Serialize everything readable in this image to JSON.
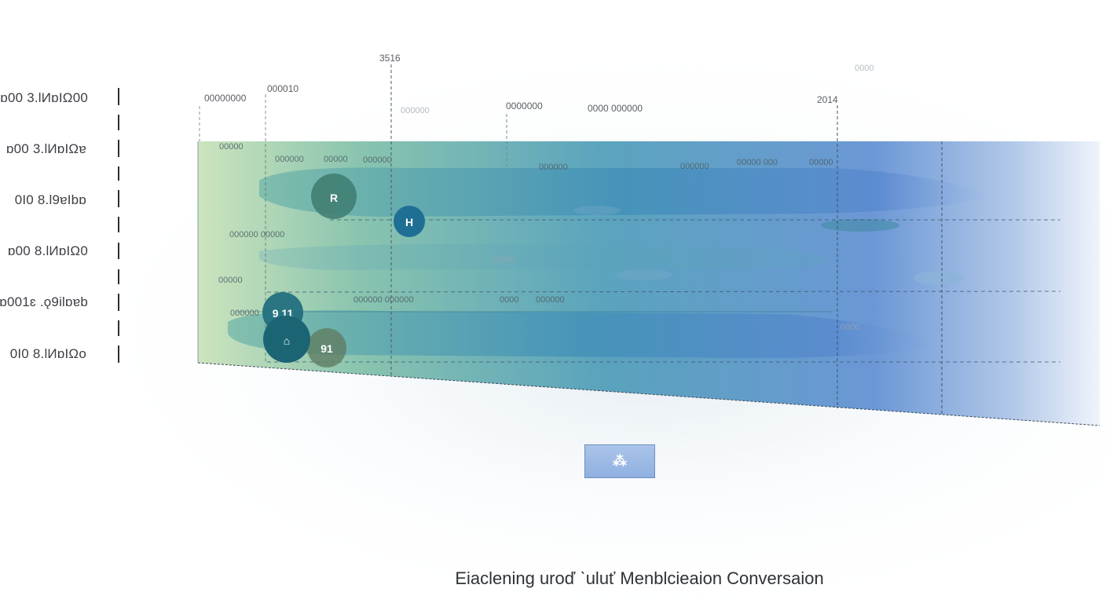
{
  "caption": "Eiaclening uroď ˋuluť Menblcieaion Conversaion",
  "row_labels": [
    "ɒ00 3.ƖИɒIΩ00",
    "ɒ00 3.ƖИɒIΩɐ",
    "0I0 8.Ɩ9ɐIbɒ",
    "ɒ00 8.ƖИɒIΩ0",
    "ɒ001ɛ .ǫ9ilɒɐb",
    "0I0 8.ƖИɒIΩo"
  ],
  "top_labels": [
    "3516",
    "00000000",
    "000010",
    "0000000",
    "0000 000000",
    "2014",
    "0000"
  ],
  "inner_labels": [
    "00000",
    "000000 00000",
    "00000",
    "000000",
    "000000",
    "00000",
    "000000",
    "000000 000000",
    "0000",
    "000000",
    "000000",
    "000000",
    "00000 000",
    "00000",
    "000000",
    "00000",
    "0000"
  ],
  "markers": [
    {
      "id": "marker-a",
      "text": "R"
    },
    {
      "id": "marker-b",
      "text": "H"
    },
    {
      "id": "marker-c",
      "text": "9 11"
    },
    {
      "id": "marker-d",
      "text": "⌂"
    },
    {
      "id": "marker-e",
      "text": "91"
    }
  ],
  "button": {
    "label": "⁂",
    "icon": "figure-icon"
  },
  "colors": {
    "band_left": "#bfdcb3",
    "band_mid": "#4f9fb6",
    "band_right": "#5f8fd4",
    "marker_teal": "#1f6d7d",
    "marker_blue": "#1e6f93",
    "marker_olive": "#5f7d63"
  }
}
